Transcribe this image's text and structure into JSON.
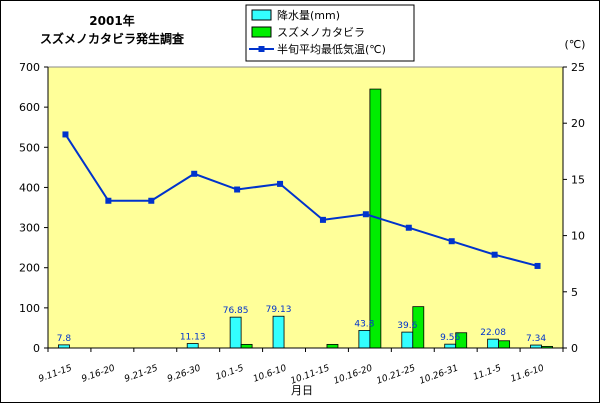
{
  "chart_data": {
    "type": "bar",
    "title_line1": "2001年",
    "title_line2": "スズメノカタビラ発生調査",
    "xlabel": "月日",
    "y2_unit_label": "(℃)",
    "categories": [
      "9.11-15",
      "9.16-20",
      "9.21-25",
      "9.26-30",
      "10.1-5",
      "10.6-10",
      "10.11-15",
      "10.16-20",
      "10.21-25",
      "10.26-31",
      "11.1-5",
      "11.6-10"
    ],
    "ylim": [
      0,
      700
    ],
    "yticks": [
      "0",
      "100",
      "200",
      "300",
      "400",
      "500",
      "600",
      "700"
    ],
    "y2lim": [
      0,
      25
    ],
    "y2ticks": [
      "0",
      "5",
      "10",
      "15",
      "20",
      "25"
    ],
    "series": [
      {
        "name": "降水量(mm)",
        "type": "bar",
        "axis": "left",
        "color": "#33ffff",
        "values": [
          7.8,
          0,
          0,
          11.13,
          76.85,
          79.13,
          0,
          43.8,
          39.6,
          9.56,
          22.08,
          7.34
        ],
        "labels": [
          "7.8",
          "",
          "",
          "11.13",
          "76.85",
          "79.13",
          "",
          "43.8",
          "39.6",
          "9.56",
          "22.08",
          "7.34"
        ]
      },
      {
        "name": "スズメノカタビラ",
        "type": "bar",
        "axis": "left",
        "color": "#00ee00",
        "values": [
          0,
          0,
          0,
          0,
          9,
          0,
          9,
          645,
          103,
          38,
          18,
          4
        ]
      },
      {
        "name": "半旬平均最低気温(℃)",
        "type": "line",
        "axis": "right",
        "color": "#0033cc",
        "values": [
          19.0,
          13.1,
          13.1,
          15.5,
          14.1,
          14.6,
          11.4,
          11.9,
          10.7,
          9.5,
          8.3,
          7.3
        ]
      }
    ],
    "plot_background": "#ffff99",
    "legend_position": "top-center"
  }
}
